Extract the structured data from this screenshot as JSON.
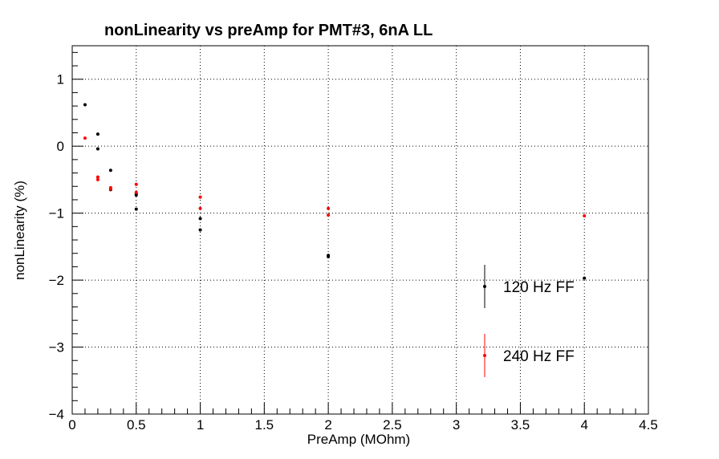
{
  "chart_data": {
    "type": "scatter",
    "title": "nonLinearity vs preAmp for PMT#3, 6nA LL",
    "xlabel": "PreAmp (MOhm)",
    "ylabel": "nonLinearity (%)",
    "xlim": [
      0,
      4.5
    ],
    "ylim": [
      -4,
      1.5
    ],
    "x_ticks": [
      0,
      0.5,
      1,
      1.5,
      2,
      2.5,
      3,
      3.5,
      4,
      4.5
    ],
    "x_tick_labels": [
      "0",
      "0.5",
      "1",
      "1.5",
      "2",
      "2.5",
      "3",
      "3.5",
      "4",
      "4.5"
    ],
    "y_ticks": [
      -4,
      -3,
      -2,
      -1,
      0,
      1
    ],
    "y_tick_labels": [
      "−4",
      "−3",
      "−2",
      "−1",
      "0",
      "1"
    ],
    "grid": true,
    "legend_position": "lower-right",
    "series": [
      {
        "name": "120 Hz FF",
        "color": "#000000",
        "x": [
          0.1,
          0.2,
          0.2,
          0.3,
          0.3,
          0.5,
          0.5,
          0.5,
          1.0,
          1.0,
          2.0,
          2.0,
          4.0
        ],
        "y": [
          0.62,
          0.18,
          -0.04,
          -0.36,
          -0.65,
          -0.71,
          -0.73,
          -0.94,
          -1.08,
          -1.25,
          -1.63,
          -1.65,
          -1.97
        ]
      },
      {
        "name": "240 Hz FF",
        "color": "#ff0000",
        "x": [
          0.1,
          0.2,
          0.2,
          0.3,
          0.3,
          0.5,
          0.5,
          1.0,
          1.0,
          2.0,
          2.0,
          4.0
        ],
        "y": [
          0.12,
          -0.46,
          -0.5,
          -0.62,
          -0.64,
          -0.57,
          -0.69,
          -0.76,
          -0.93,
          -0.93,
          -1.03,
          -1.04
        ]
      }
    ]
  }
}
